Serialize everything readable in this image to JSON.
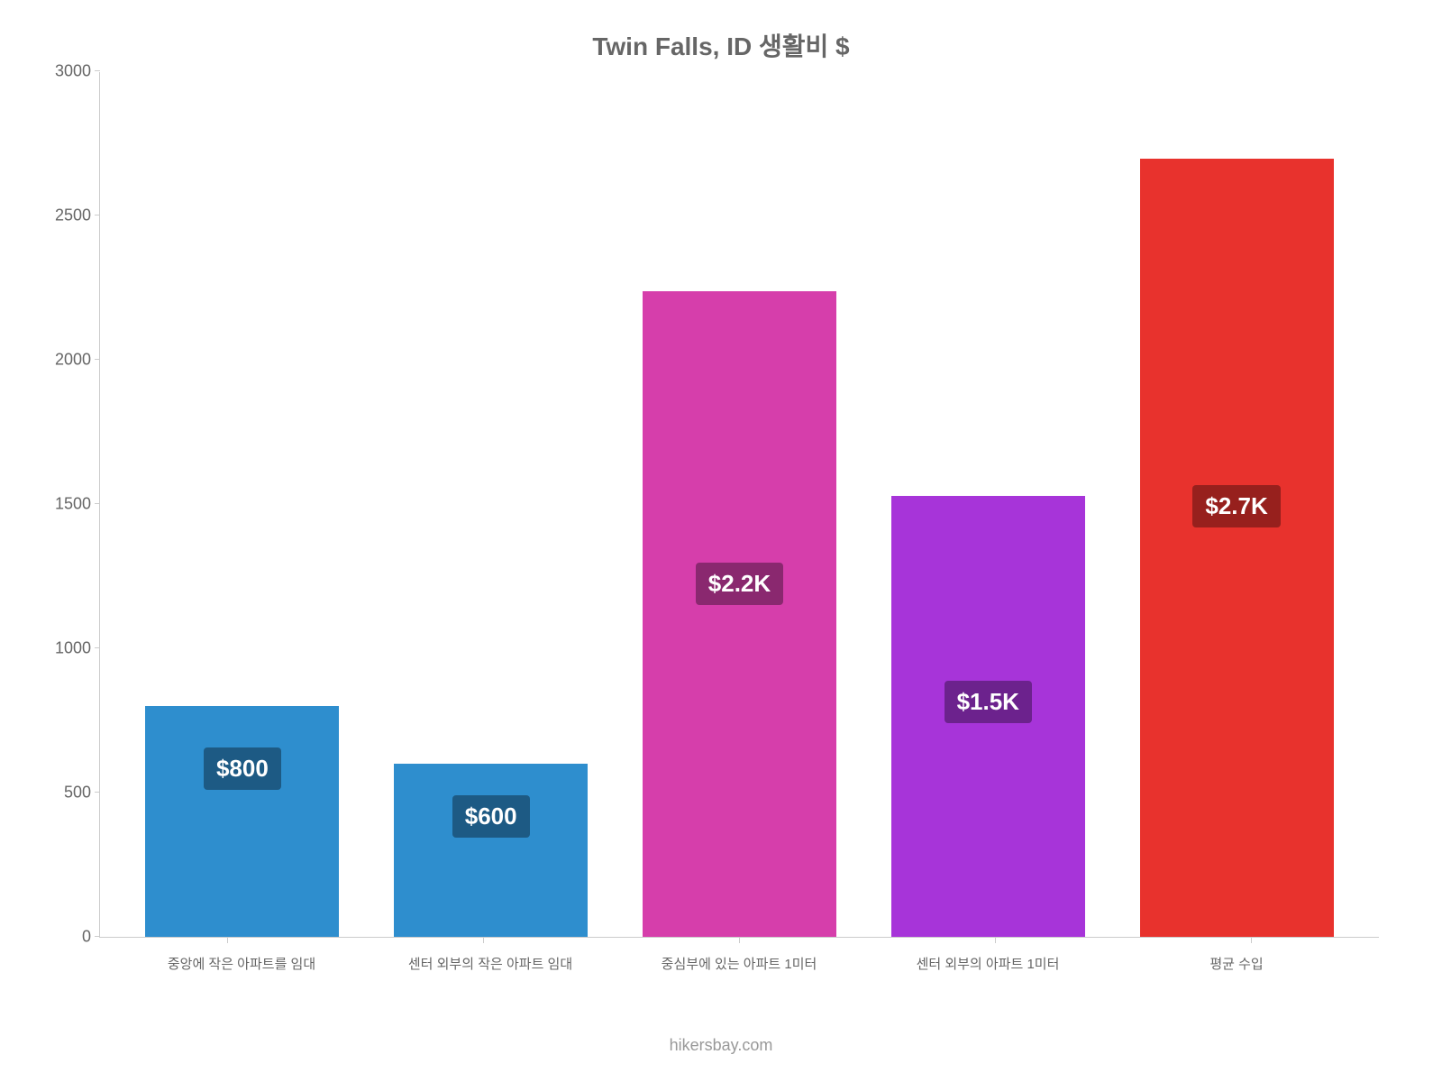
{
  "chart": {
    "type": "bar",
    "title": "Twin Falls, ID 생활비 $",
    "title_fontsize": 28,
    "title_color": "#666666",
    "background_color": "#ffffff",
    "axis_color": "#cccccc",
    "tick_label_color": "#666666",
    "tick_label_fontsize": 18,
    "x_label_fontsize": 15,
    "ylim": [
      0,
      3000
    ],
    "ytick_step": 500,
    "yticks": [
      {
        "value": 0,
        "label": "0"
      },
      {
        "value": 500,
        "label": "500"
      },
      {
        "value": 1000,
        "label": "1000"
      },
      {
        "value": 1500,
        "label": "1500"
      },
      {
        "value": 2000,
        "label": "2000"
      },
      {
        "value": 2500,
        "label": "2500"
      },
      {
        "value": 3000,
        "label": "3000"
      }
    ],
    "bar_width_ratio": 0.78,
    "bars": [
      {
        "category": "중앙에 작은 아파트를 임대",
        "value": 800,
        "display_label": "$800",
        "bar_color": "#2e8ece",
        "label_bg_color": "#1d5a84",
        "label_text_color": "#ffffff"
      },
      {
        "category": "센터 외부의 작은 아파트 임대",
        "value": 600,
        "display_label": "$600",
        "bar_color": "#2e8ece",
        "label_bg_color": "#1d5a84",
        "label_text_color": "#ffffff"
      },
      {
        "category": "중심부에 있는 아파트 1미터",
        "value": 2240,
        "display_label": "$2.2K",
        "bar_color": "#d63eab",
        "label_bg_color": "#8a286f",
        "label_text_color": "#ffffff"
      },
      {
        "category": "센터 외부의 아파트 1미터",
        "value": 1530,
        "display_label": "$1.5K",
        "bar_color": "#a734d9",
        "label_bg_color": "#6c228d",
        "label_text_color": "#ffffff"
      },
      {
        "category": "평균 수입",
        "value": 2700,
        "display_label": "$2.7K",
        "bar_color": "#e8322d",
        "label_bg_color": "#97201d",
        "label_text_color": "#ffffff"
      }
    ],
    "footer": "hikersbay.com",
    "footer_color": "#999999",
    "footer_fontsize": 18
  }
}
